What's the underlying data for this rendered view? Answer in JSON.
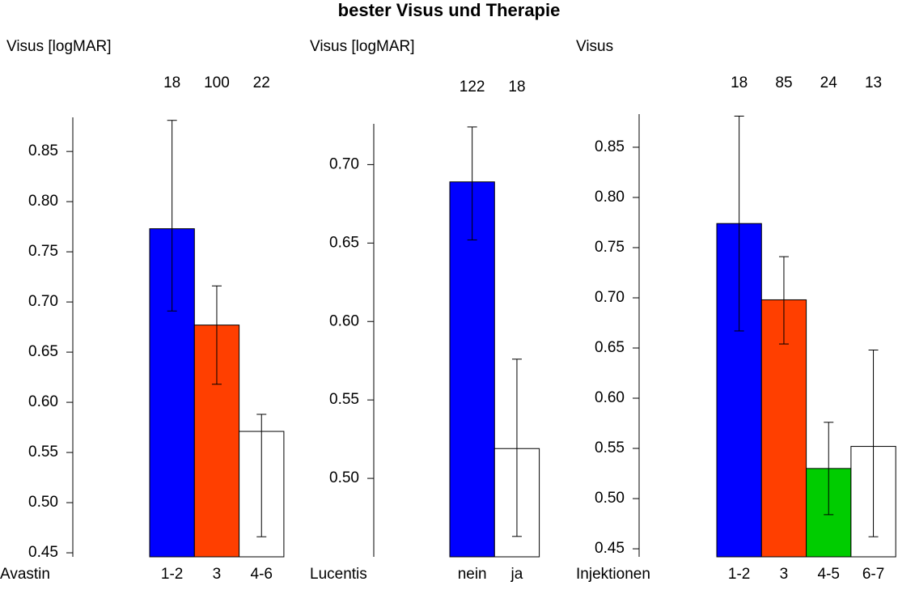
{
  "title": "bester Visus und Therapie",
  "chart_data": [
    {
      "type": "bar",
      "y_label": "Visus [logMAR]",
      "x_label": "Avastin",
      "categories": [
        "1-2",
        "3",
        "4-6"
      ],
      "n": [
        18,
        100,
        22
      ],
      "values": [
        0.773,
        0.677,
        0.571
      ],
      "lower": [
        0.691,
        0.618,
        0.466
      ],
      "upper": [
        0.881,
        0.716,
        0.588
      ],
      "colors": [
        "#0000ff",
        "#ff3f00",
        "#ffffff"
      ],
      "ylim": [
        0.446,
        0.884
      ],
      "yticks": [
        {
          "value": 0.45,
          "label": "0.45"
        },
        {
          "value": 0.5,
          "label": "0.50"
        },
        0.55,
        {
          "value": 0.6,
          "label": "0.60"
        },
        0.65,
        {
          "value": 0.7,
          "label": "0.70"
        },
        0.75,
        {
          "value": 0.8,
          "label": "0.80"
        },
        0.85
      ]
    },
    {
      "type": "bar",
      "y_label": "Visus [logMAR]",
      "x_label": "Lucentis",
      "categories": [
        "nein",
        "ja"
      ],
      "n": [
        122,
        18
      ],
      "values": [
        0.689,
        0.519
      ],
      "lower": [
        0.652,
        0.463
      ],
      "upper": [
        0.724,
        0.576
      ],
      "colors": [
        "#0000ff",
        "#ffffff"
      ],
      "ylim": [
        0.45,
        0.726
      ],
      "yticks": [
        {
          "value": 0.5,
          "label": "0.50"
        },
        0.55,
        {
          "value": 0.6,
          "label": "0.60"
        },
        0.65,
        {
          "value": 0.7,
          "label": "0.70"
        }
      ]
    },
    {
      "type": "bar",
      "y_label": "Visus",
      "x_label": "Injektionen",
      "categories": [
        "1-2",
        "3",
        "4-5",
        "6-7"
      ],
      "n": [
        18,
        85,
        24,
        13
      ],
      "values": [
        0.774,
        0.698,
        0.53,
        0.552
      ],
      "lower": [
        0.667,
        0.654,
        0.484,
        0.462
      ],
      "upper": [
        0.881,
        0.741,
        0.576,
        0.648
      ],
      "colors": [
        "#0000ff",
        "#ff3f00",
        "#00cc00",
        "#ffffff"
      ],
      "ylim": [
        0.442,
        0.883
      ],
      "yticks": [
        {
          "value": 0.45,
          "label": "0.45"
        },
        {
          "value": 0.5,
          "label": "0.50"
        },
        0.55,
        {
          "value": 0.6,
          "label": "0.60"
        },
        0.65,
        {
          "value": 0.7,
          "label": "0.70"
        },
        0.75,
        {
          "value": 0.8,
          "label": "0.80"
        },
        0.85
      ]
    }
  ]
}
